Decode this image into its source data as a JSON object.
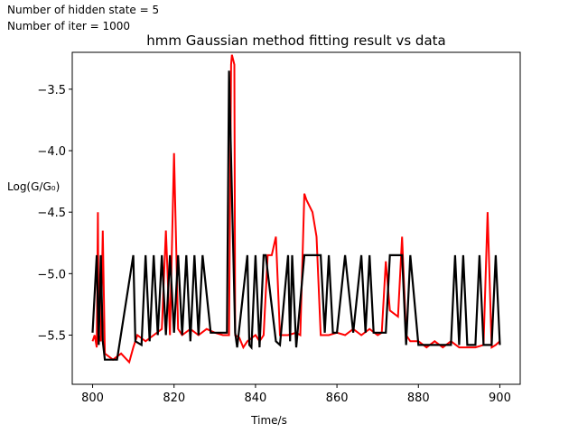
{
  "notes": {
    "hidden_states": "Number of hidden state = 5",
    "iterations": "Number of iter = 1000"
  },
  "chart_data": {
    "type": "line",
    "title": "hmm Gaussian method fitting result vs data",
    "xlabel": "Time/s",
    "ylabel": "Log(G/G₀)",
    "xlim": [
      795,
      905
    ],
    "ylim": [
      -5.9,
      -3.2
    ],
    "xticks": [
      800,
      820,
      840,
      860,
      880,
      900
    ],
    "yticks": [
      -3.5,
      -4.0,
      -4.5,
      -5.0,
      -5.5
    ],
    "xtick_labels": [
      "800",
      "820",
      "840",
      "860",
      "880",
      "900"
    ],
    "ytick_labels": [
      "−3.5",
      "−4.0",
      "−4.5",
      "−5.0",
      "−5.5"
    ],
    "grid": false,
    "series": [
      {
        "color": "#ff0000",
        "x": [
          800,
          800.5,
          801,
          801.3,
          801.5,
          802,
          802.5,
          803,
          805,
          807,
          809,
          810,
          811,
          813,
          815,
          817,
          818,
          819,
          820,
          821,
          822,
          824,
          826,
          828,
          830,
          832,
          833.5,
          834,
          834.2,
          834.8,
          835,
          836,
          837,
          838,
          840,
          841,
          842,
          843,
          844,
          845,
          846,
          848,
          850,
          851,
          852,
          852.5,
          854,
          855,
          856,
          858,
          860,
          862,
          864,
          866,
          868,
          870,
          871,
          872,
          873,
          875,
          876,
          877,
          878,
          880,
          882,
          884,
          886,
          888,
          890,
          892,
          894,
          896,
          897,
          898,
          899,
          900
        ],
        "y": [
          -5.55,
          -5.5,
          -5.6,
          -4.5,
          -5.5,
          -5.55,
          -4.65,
          -5.65,
          -5.7,
          -5.65,
          -5.72,
          -5.6,
          -5.5,
          -5.55,
          -5.5,
          -5.45,
          -4.65,
          -5.5,
          -4.02,
          -5.45,
          -5.5,
          -5.45,
          -5.5,
          -5.45,
          -5.48,
          -5.5,
          -5.5,
          -3.3,
          -3.22,
          -3.3,
          -5.5,
          -5.52,
          -5.6,
          -5.55,
          -5.5,
          -5.55,
          -5.5,
          -4.85,
          -4.85,
          -4.7,
          -5.5,
          -5.5,
          -5.48,
          -5.5,
          -4.35,
          -4.4,
          -4.5,
          -4.7,
          -5.5,
          -5.5,
          -5.48,
          -5.5,
          -5.45,
          -5.5,
          -5.45,
          -5.5,
          -5.48,
          -4.9,
          -5.3,
          -5.35,
          -4.7,
          -5.5,
          -5.55,
          -5.55,
          -5.6,
          -5.55,
          -5.6,
          -5.55,
          -5.6,
          -5.6,
          -5.6,
          -5.58,
          -4.5,
          -5.6,
          -5.58,
          -5.55
        ]
      },
      {
        "color": "#000000",
        "x": [
          800,
          801,
          801.5,
          802,
          802.5,
          803,
          806,
          810,
          810.5,
          812,
          813,
          814,
          815,
          816,
          817,
          818,
          819,
          820,
          821,
          822,
          823,
          824,
          825,
          826,
          827,
          829,
          830,
          833,
          833.5,
          835,
          835.5,
          838,
          838.5,
          839,
          840,
          841,
          842,
          842.5,
          845,
          846,
          848,
          848.5,
          849,
          850,
          852,
          856,
          857,
          858,
          859,
          860,
          862,
          864,
          866,
          867,
          868,
          869,
          870,
          872,
          873,
          876,
          877,
          878,
          880,
          882,
          884,
          886,
          888,
          889,
          890,
          891,
          892,
          894,
          895,
          896,
          898,
          899,
          900
        ],
        "y": [
          -5.48,
          -4.85,
          -5.58,
          -4.85,
          -5.55,
          -5.7,
          -5.7,
          -4.85,
          -5.55,
          -5.58,
          -4.85,
          -5.55,
          -4.85,
          -5.5,
          -4.85,
          -5.5,
          -4.85,
          -5.48,
          -4.85,
          -5.5,
          -4.85,
          -5.55,
          -4.85,
          -5.5,
          -4.85,
          -5.48,
          -5.48,
          -5.48,
          -3.35,
          -5.48,
          -5.6,
          -4.85,
          -5.58,
          -5.6,
          -4.85,
          -5.6,
          -4.85,
          -4.85,
          -5.55,
          -5.58,
          -4.85,
          -5.55,
          -4.85,
          -5.6,
          -4.85,
          -4.85,
          -5.48,
          -4.85,
          -5.48,
          -5.48,
          -4.85,
          -5.48,
          -4.85,
          -5.48,
          -4.85,
          -5.48,
          -5.48,
          -5.48,
          -4.85,
          -4.85,
          -5.58,
          -4.85,
          -5.58,
          -5.58,
          -5.58,
          -5.58,
          -5.58,
          -4.85,
          -5.58,
          -4.85,
          -5.58,
          -5.58,
          -4.85,
          -5.58,
          -5.58,
          -4.85,
          -5.58
        ]
      }
    ]
  }
}
